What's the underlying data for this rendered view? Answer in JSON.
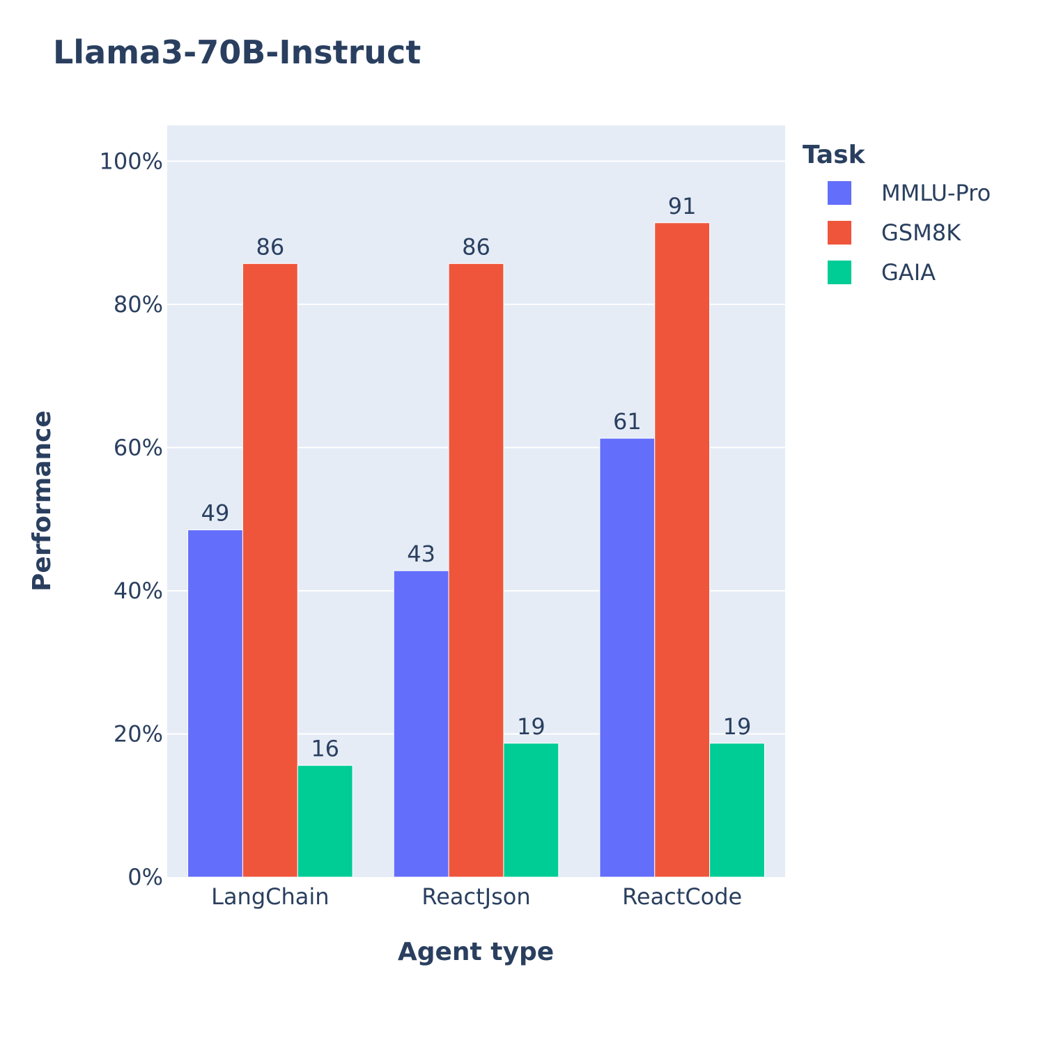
{
  "chart_data": {
    "type": "bar",
    "title": "Llama3-70B-Instruct",
    "xlabel": "Agent type",
    "ylabel": "Performance",
    "categories": [
      "LangChain",
      "ReactJson",
      "ReactCode"
    ],
    "series": [
      {
        "name": "MMLU-Pro",
        "color": "#636efa",
        "values": [
          48.5,
          42.8,
          61.3
        ],
        "labels": [
          "49",
          "43",
          "61"
        ]
      },
      {
        "name": "GSM8K",
        "color": "#ef553b",
        "values": [
          85.7,
          85.7,
          91.4
        ],
        "labels": [
          "86",
          "86",
          "91"
        ]
      },
      {
        "name": "GAIA",
        "color": "#00cc96",
        "values": [
          15.6,
          18.7,
          18.7
        ],
        "labels": [
          "16",
          "19",
          "19"
        ]
      }
    ],
    "ylim": [
      0,
      105
    ],
    "yticks": [
      0,
      20,
      40,
      60,
      80,
      100
    ],
    "ytick_labels": [
      "0%",
      "20%",
      "40%",
      "60%",
      "80%",
      "100%"
    ],
    "legend_title": "Task",
    "legend_position": "top-right outside",
    "grid": true,
    "plot_background": "#e5ecf6"
  }
}
